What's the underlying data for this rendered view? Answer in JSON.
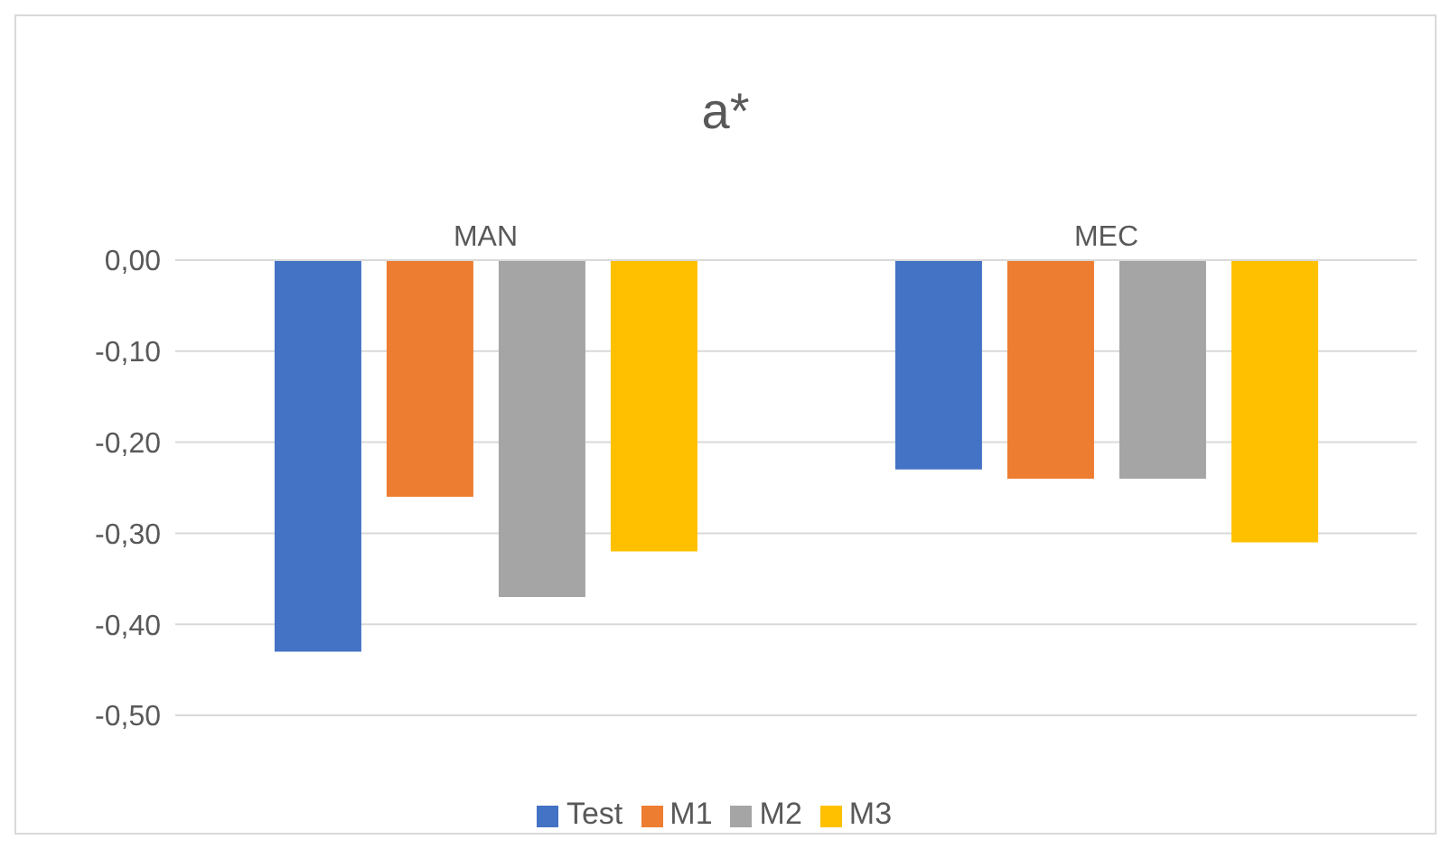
{
  "chart_data": {
    "type": "bar",
    "title": "a*",
    "categories": [
      "MAN",
      "MEC"
    ],
    "series": [
      {
        "name": "Test",
        "color": "#4472c4",
        "values": [
          -0.43,
          -0.23
        ]
      },
      {
        "name": "M1",
        "color": "#ed7d31",
        "values": [
          -0.26,
          -0.24
        ]
      },
      {
        "name": "M2",
        "color": "#a5a5a5",
        "values": [
          -0.37,
          -0.24
        ]
      },
      {
        "name": "M3",
        "color": "#ffc000",
        "values": [
          -0.32,
          -0.31
        ]
      }
    ],
    "ylim": [
      -0.5,
      0
    ],
    "yticks": [
      {
        "value": 0,
        "label": "0,00"
      },
      {
        "value": -0.1,
        "label": "-0,10"
      },
      {
        "value": -0.2,
        "label": "-0,20"
      },
      {
        "value": -0.3,
        "label": "-0,30"
      },
      {
        "value": -0.4,
        "label": "-0,40"
      },
      {
        "value": -0.5,
        "label": "-0,50"
      }
    ],
    "grid": "y",
    "legend": "bottom"
  }
}
